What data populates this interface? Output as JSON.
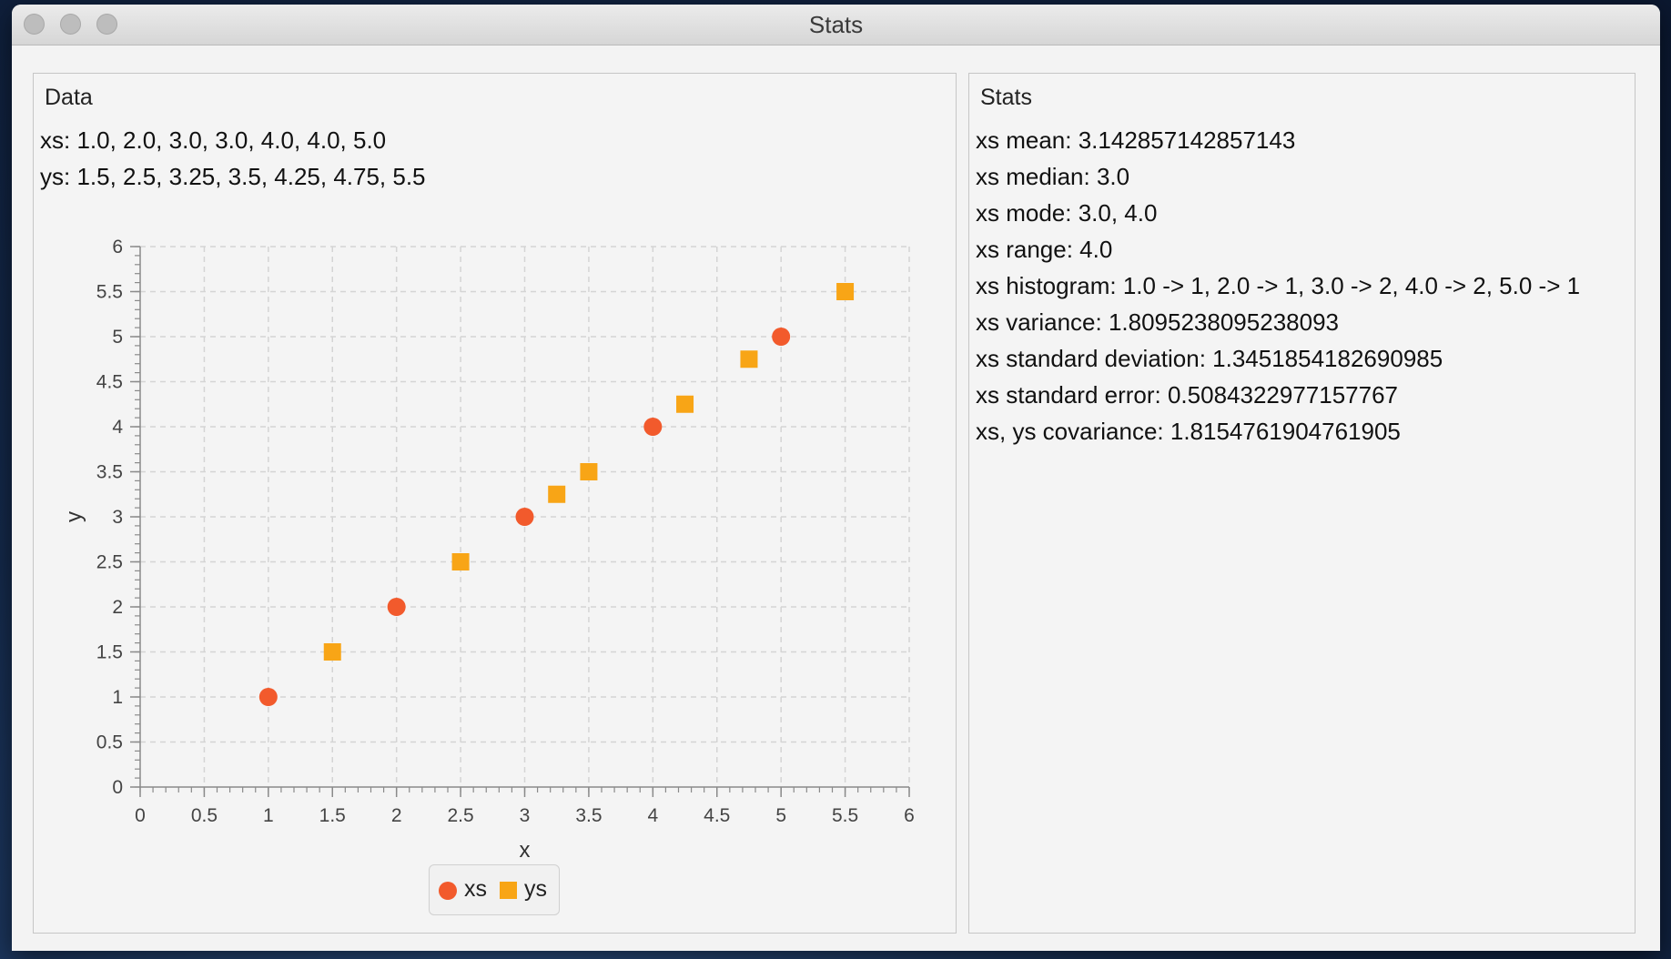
{
  "window": {
    "title": "Stats"
  },
  "data_panel": {
    "title": "Data",
    "xs_line": "xs: 1.0, 2.0, 3.0, 3.0, 4.0, 4.0, 5.0",
    "ys_line": "ys: 1.5, 2.5, 3.25, 3.5, 4.25, 4.75, 5.5"
  },
  "stats_panel": {
    "title": "Stats",
    "lines": [
      "xs mean: 3.142857142857143",
      "xs median: 3.0",
      "xs mode: 3.0, 4.0",
      "xs range: 4.0",
      "xs histogram: 1.0 -> 1, 2.0 -> 1, 3.0 -> 2, 4.0 -> 2, 5.0 -> 1",
      "xs variance: 1.8095238095238093",
      "xs standard deviation: 1.3451854182690985",
      "xs standard error: 0.5084322977157767",
      "xs, ys covariance: 1.8154761904761905"
    ]
  },
  "colors": {
    "xs": "#f25a2c",
    "ys": "#f8a516"
  },
  "chart_data": {
    "type": "scatter",
    "xlabel": "x",
    "ylabel": "y",
    "xlim": [
      0,
      6
    ],
    "ylim": [
      0,
      6
    ],
    "xticks": [
      "0",
      "0.5",
      "1",
      "1.5",
      "2",
      "2.5",
      "3",
      "3.5",
      "4",
      "4.5",
      "5",
      "5.5",
      "6"
    ],
    "yticks": [
      "0",
      "0.5",
      "1",
      "1.5",
      "2",
      "2.5",
      "3",
      "3.5",
      "4",
      "4.5",
      "5",
      "5.5",
      "6"
    ],
    "grid": true,
    "legend_position": "bottom-center",
    "series": [
      {
        "name": "xs",
        "marker": "circle",
        "points": [
          [
            1,
            1
          ],
          [
            2,
            2
          ],
          [
            3,
            3
          ],
          [
            4,
            4
          ],
          [
            5,
            5
          ]
        ]
      },
      {
        "name": "ys",
        "marker": "square",
        "points": [
          [
            1.5,
            1.5
          ],
          [
            2.5,
            2.5
          ],
          [
            3.25,
            3.25
          ],
          [
            3.5,
            3.5
          ],
          [
            4.25,
            4.25
          ],
          [
            4.75,
            4.75
          ],
          [
            5.5,
            5.5
          ]
        ]
      }
    ]
  }
}
